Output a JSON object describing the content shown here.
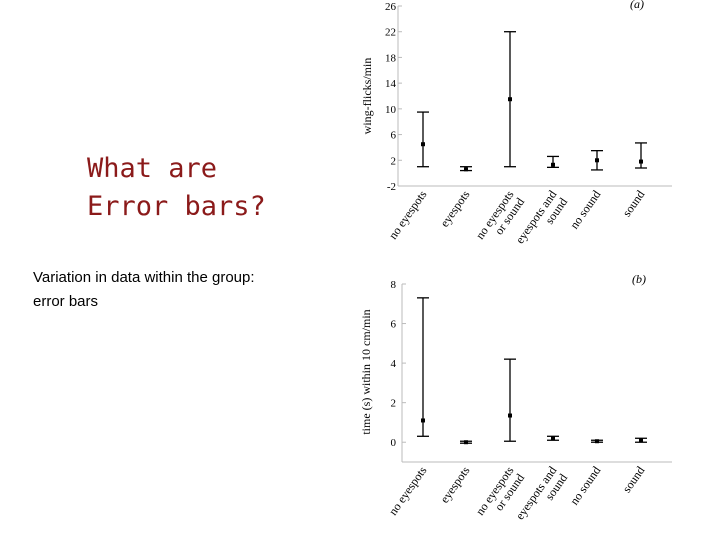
{
  "slide": {
    "title": "What are\nError bars?",
    "body": "Variation in data within the group:\nerror bars",
    "title_color": "#8b1a1a",
    "text_color": "#000000"
  },
  "chart_data": [
    {
      "type": "scatter",
      "panel_label": "(a)",
      "ylabel": "wing-flicks/min",
      "ylim": [
        -2,
        26
      ],
      "yticks": [
        -2,
        2,
        6,
        10,
        14,
        18,
        22,
        26
      ],
      "categories": [
        "no eyespots",
        "eyespots",
        "no eyespots\nor sound",
        "eyespots and\nsound",
        "no sound",
        "sound"
      ],
      "series": [
        {
          "mean": [
            4.5,
            0.6,
            11.5,
            1.3,
            2.0,
            1.8
          ],
          "lower": [
            1.0,
            0.4,
            1.0,
            0.9,
            0.5,
            0.8
          ],
          "upper": [
            9.5,
            1.0,
            22.0,
            2.6,
            3.5,
            4.7
          ]
        }
      ],
      "error_bars": true,
      "grid": false
    },
    {
      "type": "scatter",
      "panel_label": "(b)",
      "ylabel": "time (s) within 10 cm/min",
      "ylim": [
        -1,
        8
      ],
      "yticks": [
        0,
        2,
        4,
        6,
        8
      ],
      "categories": [
        "no eyespots",
        "eyespots",
        "no eyespots\nor sound",
        "eyespots and\nsound",
        "no sound",
        "sound"
      ],
      "series": [
        {
          "mean": [
            1.1,
            0.0,
            1.35,
            0.2,
            0.05,
            0.1
          ],
          "lower": [
            0.3,
            -0.05,
            0.05,
            0.1,
            0.0,
            0.0
          ],
          "upper": [
            7.3,
            0.05,
            4.2,
            0.3,
            0.1,
            0.2
          ]
        }
      ],
      "error_bars": true,
      "grid": false
    }
  ]
}
